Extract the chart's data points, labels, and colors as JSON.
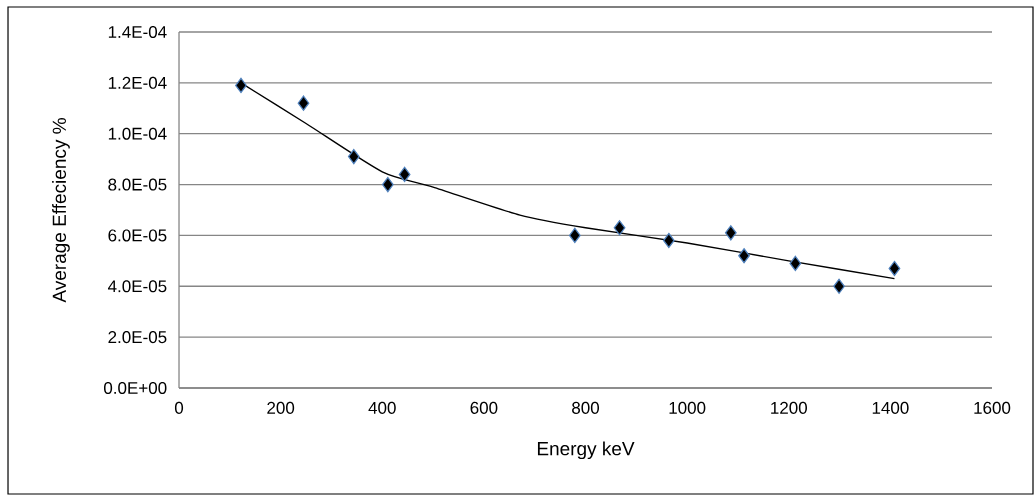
{
  "chart_data": {
    "type": "scatter",
    "xlabel": "Energy  keV",
    "ylabel": "Average Effeciency %",
    "xlim": [
      0,
      1600
    ],
    "xticks": [
      0,
      200,
      400,
      600,
      800,
      1000,
      1200,
      1400,
      1600
    ],
    "ylim": [
      0,
      0.00014
    ],
    "yticks": [
      {
        "value": 0,
        "label": "0.0E+00"
      },
      {
        "value": 2e-05,
        "label": "2.0E-05"
      },
      {
        "value": 4e-05,
        "label": "4.0E-05"
      },
      {
        "value": 6e-05,
        "label": "6.0E-05"
      },
      {
        "value": 8e-05,
        "label": "8.0E-05"
      },
      {
        "value": 0.0001,
        "label": "1.0E-04"
      },
      {
        "value": 0.00012,
        "label": "1.2E-04"
      },
      {
        "value": 0.00014,
        "label": "1.4E-04"
      }
    ],
    "grid": "y",
    "series": [
      {
        "marker": "diamond",
        "color": "#000000",
        "x": [
          122,
          245,
          344,
          411,
          444,
          779,
          867,
          964,
          1086,
          1112,
          1213,
          1299,
          1408
        ],
        "values": [
          0.000119,
          0.000112,
          9.1e-05,
          8e-05,
          8.4e-05,
          6e-05,
          6.3e-05,
          5.8e-05,
          6.1e-05,
          5.2e-05,
          4.9e-05,
          4e-05,
          4.7e-05
        ]
      },
      {
        "type": "line",
        "marker": "none",
        "line_style": "solid",
        "color": "#000000",
        "x": [
          122,
          250,
          400,
          500,
          671,
          800,
          1000,
          1200,
          1408
        ],
        "values": [
          0.00012,
          0.000104,
          8.5e-05,
          7.9e-05,
          6.8e-05,
          6.3e-05,
          5.7e-05,
          5e-05,
          4.3e-05
        ]
      }
    ]
  }
}
